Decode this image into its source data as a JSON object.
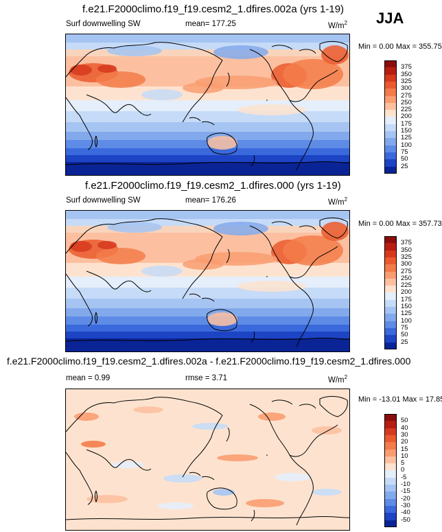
{
  "season": "JJA",
  "panels": [
    {
      "title": "f.e21.F2000climo.f19_f19.cesm2_1.dfires.002a (yrs 1-19)",
      "variable": "Surf downwelling SW",
      "mean_label": "mean= 177.25",
      "units": "W/m",
      "units_sup": "2",
      "minmax": "Min =   0.00 Max = 355.75",
      "colorbar_labels": [
        "375",
        "350",
        "325",
        "300",
        "275",
        "250",
        "225",
        "200",
        "175",
        "150",
        "125",
        "100",
        "75",
        "50",
        "25"
      ],
      "colors": [
        "#8c0d0d",
        "#b71e12",
        "#d63a1e",
        "#ea5a2e",
        "#f37c4a",
        "#f99d71",
        "#fcc0a0",
        "#fde3cf",
        "#e5eefb",
        "#c6dbf7",
        "#a5c4f2",
        "#82a9ec",
        "#5d8be6",
        "#3a69dc",
        "#1c44c4",
        "#0a2496"
      ]
    },
    {
      "title": "f.e21.F2000climo.f19_f19.cesm2_1.dfires.000 (yrs 1-19)",
      "variable": "Surf downwelling SW",
      "mean_label": "mean= 176.26",
      "units": "W/m",
      "units_sup": "2",
      "minmax": "Min =   0.00 Max = 357.73",
      "colorbar_labels": [
        "375",
        "350",
        "325",
        "300",
        "275",
        "250",
        "225",
        "200",
        "175",
        "150",
        "125",
        "100",
        "75",
        "50",
        "25"
      ],
      "colors": [
        "#8c0d0d",
        "#b71e12",
        "#d63a1e",
        "#ea5a2e",
        "#f37c4a",
        "#f99d71",
        "#fcc0a0",
        "#fde3cf",
        "#e5eefb",
        "#c6dbf7",
        "#a5c4f2",
        "#82a9ec",
        "#5d8be6",
        "#3a69dc",
        "#1c44c4",
        "#0a2496"
      ]
    },
    {
      "title": "f.e21.F2000climo.f19_f19.cesm2_1.dfires.002a - f.e21.F2000climo.f19_f19.cesm2_1.dfires.000",
      "mean_label": "mean =   0.99",
      "rmse_label": "rmse =   3.71",
      "units": "W/m",
      "units_sup": "2",
      "minmax": "Min = -13.01 Max =  17.85",
      "colorbar_labels": [
        "50",
        "40",
        "30",
        "20",
        "15",
        "10",
        "5",
        "0",
        "-5",
        "-10",
        "-15",
        "-20",
        "-30",
        "-40",
        "-50"
      ],
      "colors": [
        "#8c0d0d",
        "#b71e12",
        "#d63a1e",
        "#ea5a2e",
        "#f37c4a",
        "#f99d71",
        "#fcc0a0",
        "#fde3cf",
        "#e5eefb",
        "#c6dbf7",
        "#a5c4f2",
        "#82a9ec",
        "#5d8be6",
        "#3a69dc",
        "#1c44c4",
        "#0a2496"
      ]
    }
  ],
  "chart_data": [
    {
      "type": "heatmap",
      "title": "f.e21.F2000climo.f19_f19.cesm2_1.dfires.002a (yrs 1-19)",
      "variable": "Surf downwelling SW",
      "units": "W/m2",
      "season": "JJA",
      "mean": 177.25,
      "min": 0.0,
      "max": 355.75,
      "levels": [
        25,
        50,
        75,
        100,
        125,
        150,
        175,
        200,
        225,
        250,
        275,
        300,
        325,
        350,
        375
      ],
      "projection": "global lat-lon, Pacific-centered"
    },
    {
      "type": "heatmap",
      "title": "f.e21.F2000climo.f19_f19.cesm2_1.dfires.000 (yrs 1-19)",
      "variable": "Surf downwelling SW",
      "units": "W/m2",
      "season": "JJA",
      "mean": 176.26,
      "min": 0.0,
      "max": 357.73,
      "levels": [
        25,
        50,
        75,
        100,
        125,
        150,
        175,
        200,
        225,
        250,
        275,
        300,
        325,
        350,
        375
      ],
      "projection": "global lat-lon, Pacific-centered"
    },
    {
      "type": "heatmap",
      "title": "f.e21.F2000climo.f19_f19.cesm2_1.dfires.002a - f.e21.F2000climo.f19_f19.cesm2_1.dfires.000",
      "units": "W/m2",
      "season": "JJA",
      "mean": 0.99,
      "rmse": 3.71,
      "min": -13.01,
      "max": 17.85,
      "levels": [
        -50,
        -40,
        -30,
        -20,
        -15,
        -10,
        -5,
        0,
        5,
        10,
        15,
        20,
        30,
        40,
        50
      ],
      "projection": "global lat-lon, Pacific-centered"
    }
  ]
}
